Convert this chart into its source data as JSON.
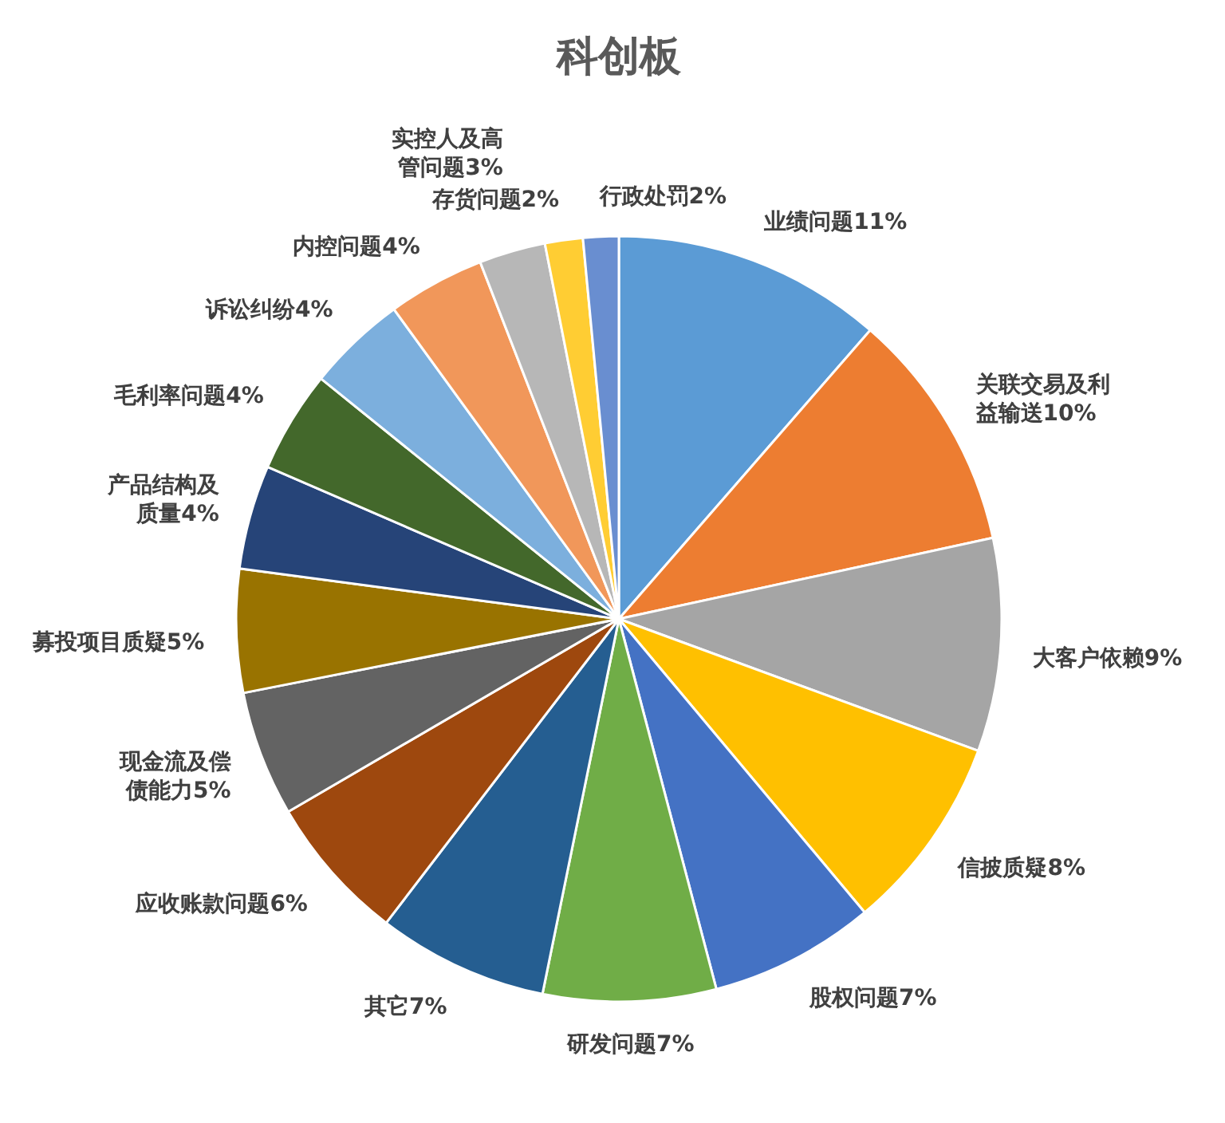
{
  "chart_data": {
    "type": "pie",
    "title": "科创板",
    "categories": [
      "业绩问题",
      "关联交易及利益输送",
      "大客户依赖",
      "信披质疑",
      "股权问题",
      "研发问题",
      "其它",
      "应收账款问题",
      "现金流及偿债能力",
      "募投项目质疑",
      "产品结构及质量",
      "毛利率问题",
      "诉讼纠纷",
      "内控问题",
      "实控人及高管问题",
      "存货问题",
      "行政处罚"
    ],
    "values": [
      11.4,
      10.2,
      9.0,
      8.3,
      7.0,
      7.3,
      7.2,
      6.2,
      5.3,
      5.2,
      4.4,
      4.3,
      4.2,
      4.1,
      2.8,
      1.6,
      1.5
    ],
    "value_labels": [
      "11%",
      "10%",
      "9%",
      "8%",
      "7%",
      "7%",
      "7%",
      "6%",
      "5%",
      "5%",
      "4%",
      "4%",
      "4%",
      "4%",
      "3%",
      "2%",
      "2%"
    ],
    "colors": [
      "#5b9bd5",
      "#ed7d31",
      "#a5a5a5",
      "#ffc000",
      "#4472c4",
      "#70ad47",
      "#255e91",
      "#9e480e",
      "#636363",
      "#997300",
      "#264478",
      "#43682b",
      "#7cafdd",
      "#f1975a",
      "#b7b7b7",
      "#ffcd33",
      "#698ed0"
    ]
  }
}
